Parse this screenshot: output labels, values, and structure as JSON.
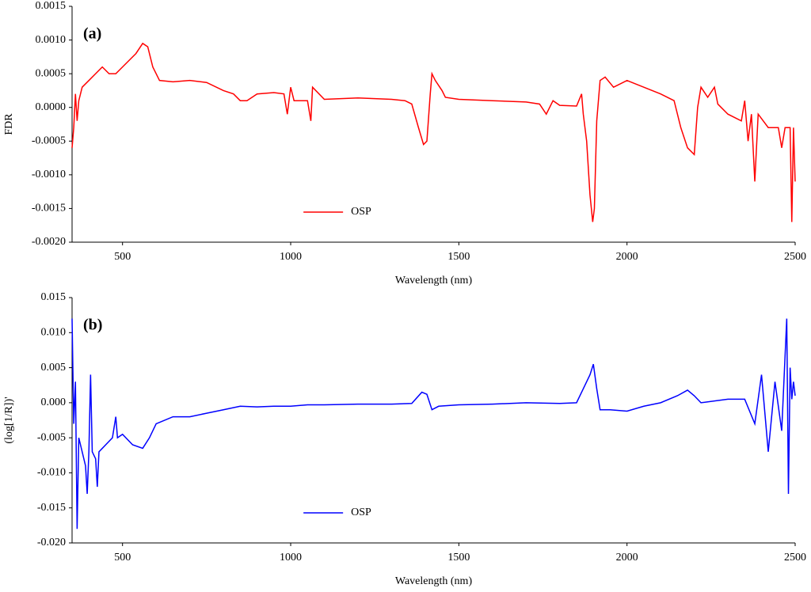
{
  "chart_data": [
    {
      "type": "line",
      "annotation": "(a)",
      "ylabel": "FDR",
      "xlabel": "Wavelength (nm)",
      "legend": "lower center",
      "xlim": [
        350,
        2500
      ],
      "xticks": [
        500,
        1000,
        1500,
        2000,
        2500
      ],
      "ylim": [
        -0.002,
        0.0015
      ],
      "yticks": [
        0.0015,
        {
          "value": 0.001,
          "label": "0.0010"
        },
        0.0005,
        {
          "value": 0,
          "label": "0.0000"
        },
        -0.0005,
        {
          "value": -0.001,
          "label": "-0.0010"
        },
        -0.0015,
        {
          "value": -0.002,
          "label": "-0.0020"
        }
      ],
      "x": [
        350,
        355,
        360,
        365,
        370,
        380,
        400,
        420,
        440,
        460,
        480,
        500,
        520,
        540,
        560,
        575,
        590,
        610,
        650,
        700,
        750,
        800,
        830,
        850,
        870,
        900,
        950,
        980,
        990,
        1000,
        1010,
        1050,
        1060,
        1065,
        1100,
        1200,
        1300,
        1340,
        1360,
        1380,
        1395,
        1405,
        1415,
        1420,
        1430,
        1450,
        1460,
        1500,
        1600,
        1700,
        1740,
        1760,
        1780,
        1800,
        1850,
        1865,
        1870,
        1880,
        1890,
        1898,
        1903,
        1910,
        1920,
        1935,
        1960,
        2000,
        2050,
        2100,
        2140,
        2160,
        2180,
        2200,
        2210,
        2220,
        2240,
        2260,
        2270,
        2300,
        2340,
        2350,
        2360,
        2370,
        2380,
        2390,
        2420,
        2450,
        2460,
        2470,
        2485,
        2490,
        2495,
        2500
      ],
      "series": [
        {
          "name": "OSP",
          "color": "#ff0000",
          "values": [
            -0.0006,
            -0.0003,
            0.0002,
            -0.0002,
            0.0001,
            0.0003,
            0.0004,
            0.0005,
            0.0006,
            0.0005,
            0.0005,
            0.0006,
            0.0007,
            0.0008,
            0.00095,
            0.0009,
            0.0006,
            0.0004,
            0.00038,
            0.0004,
            0.00037,
            0.00025,
            0.0002,
            0.0001,
            0.0001,
            0.0002,
            0.00022,
            0.0002,
            -0.0001,
            0.0003,
            0.0001,
            0.0001,
            -0.0002,
            0.0003,
            0.00012,
            0.00014,
            0.00012,
            0.0001,
            5e-05,
            -0.0003,
            -0.00055,
            -0.0005,
            0.0002,
            0.0005,
            0.0004,
            0.00025,
            0.00015,
            0.00012,
            0.0001,
            8e-05,
            5e-05,
            -0.0001,
            0.0001,
            3e-05,
            2e-05,
            0.0002,
            -0.0001,
            -0.0005,
            -0.0013,
            -0.0017,
            -0.0015,
            -0.0002,
            0.0004,
            0.00045,
            0.0003,
            0.0004,
            0.0003,
            0.0002,
            0.0001,
            -0.0003,
            -0.0006,
            -0.0007,
            0,
            0.0003,
            0.00015,
            0.0003,
            5e-05,
            -0.0001,
            -0.0002,
            0.0001,
            -0.0005,
            -0.0001,
            -0.0011,
            -0.0001,
            -0.0003,
            -0.0003,
            -0.0006,
            -0.0003,
            -0.0003,
            -0.0017,
            -0.0003,
            -0.0011
          ]
        }
      ]
    },
    {
      "type": "line",
      "annotation": "(b)",
      "ylabel": "(log[1/R])'",
      "xlabel": "Wavelength (nm)",
      "legend": "lower center",
      "xlim": [
        350,
        2500
      ],
      "xticks": [
        500,
        1000,
        1500,
        2000,
        2500
      ],
      "ylim": [
        -0.02,
        0.015
      ],
      "yticks": [
        0.015,
        {
          "value": 0.01,
          "label": "0.010"
        },
        0.005,
        {
          "value": 0,
          "label": "0.000"
        },
        -0.005,
        {
          "value": -0.01,
          "label": "-0.010"
        },
        -0.015,
        {
          "value": -0.02,
          "label": "-0.020"
        }
      ],
      "x": [
        350,
        355,
        360,
        365,
        370,
        380,
        390,
        395,
        400,
        405,
        410,
        420,
        425,
        430,
        450,
        470,
        480,
        485,
        500,
        530,
        560,
        580,
        600,
        650,
        700,
        750,
        800,
        850,
        900,
        950,
        1000,
        1050,
        1100,
        1200,
        1300,
        1360,
        1390,
        1405,
        1420,
        1440,
        1500,
        1600,
        1700,
        1800,
        1850,
        1870,
        1890,
        1900,
        1910,
        1920,
        1950,
        2000,
        2050,
        2100,
        2150,
        2180,
        2200,
        2220,
        2300,
        2350,
        2380,
        2400,
        2420,
        2440,
        2460,
        2475,
        2480,
        2485,
        2490,
        2495,
        2500
      ],
      "series": [
        {
          "name": "OSP",
          "color": "#0000ff",
          "values": [
            0.012,
            -0.003,
            0.003,
            -0.018,
            -0.005,
            -0.007,
            -0.009,
            -0.013,
            -0.007,
            0.004,
            -0.007,
            -0.008,
            -0.012,
            -0.007,
            -0.006,
            -0.005,
            -0.002,
            -0.005,
            -0.0045,
            -0.006,
            -0.0065,
            -0.005,
            -0.003,
            -0.002,
            -0.002,
            -0.0015,
            -0.001,
            -0.0005,
            -0.0006,
            -0.0005,
            -0.0005,
            -0.0003,
            -0.0003,
            -0.0002,
            -0.0002,
            -0.0001,
            0.0015,
            0.0012,
            -0.001,
            -0.0005,
            -0.0003,
            -0.0002,
            0,
            -0.0001,
            0,
            0.002,
            0.004,
            0.0055,
            0.002,
            -0.001,
            -0.001,
            -0.0012,
            -0.0005,
            0,
            0.001,
            0.0018,
            0.001,
            0,
            0.0005,
            0.0005,
            -0.003,
            0.004,
            -0.007,
            0.003,
            -0.004,
            0.012,
            -0.013,
            0.005,
            0.0005,
            0.003,
            0.001
          ]
        }
      ]
    }
  ]
}
